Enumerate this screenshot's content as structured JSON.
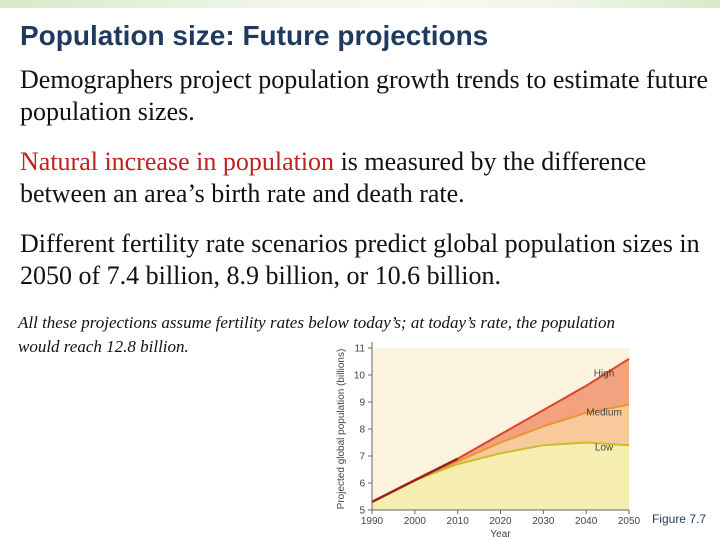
{
  "slide": {
    "title": "Population size: Future projections",
    "p1": "Demographers project population growth trends to estimate future population sizes.",
    "p2_highlight": "Natural increase in population",
    "p2_rest": " is measured by the difference between an area’s birth rate and death rate.",
    "p3": "Different fertility rate scenarios predict global population sizes in 2050 of 7.4 billion, 8.9 billion, or 10.6 billion.",
    "note": "All these projections assume fertility rates below today’s; at today’s rate, the population would reach 12.8 billion.",
    "figure_label": "Figure 7.7"
  },
  "chart_data": {
    "type": "area",
    "xlabel": "Year",
    "ylabel": "Projected global population (billions)",
    "xlim": [
      1990,
      2050
    ],
    "ylim": [
      5,
      11
    ],
    "x_ticks": [
      1990,
      2000,
      2010,
      2020,
      2030,
      2040,
      2050
    ],
    "y_ticks": [
      5,
      6,
      7,
      8,
      9,
      10,
      11
    ],
    "x": [
      1990,
      2000,
      2010,
      2020,
      2030,
      2040,
      2050
    ],
    "series": [
      {
        "name": "High",
        "values": [
          5.3,
          6.1,
          6.9,
          7.8,
          8.7,
          9.6,
          10.6
        ],
        "color": "#f2a27e"
      },
      {
        "name": "Medium",
        "values": [
          5.3,
          6.1,
          6.8,
          7.5,
          8.1,
          8.6,
          8.9
        ],
        "color": "#f7c99b"
      },
      {
        "name": "Low",
        "values": [
          5.3,
          6.1,
          6.7,
          7.1,
          7.4,
          7.5,
          7.4
        ],
        "color": "#f5eeb0"
      }
    ],
    "actual_line": {
      "x": [
        1990,
        2000,
        2010
      ],
      "values": [
        5.3,
        6.1,
        6.9
      ],
      "color": "#a01e1e"
    },
    "grid": false
  }
}
